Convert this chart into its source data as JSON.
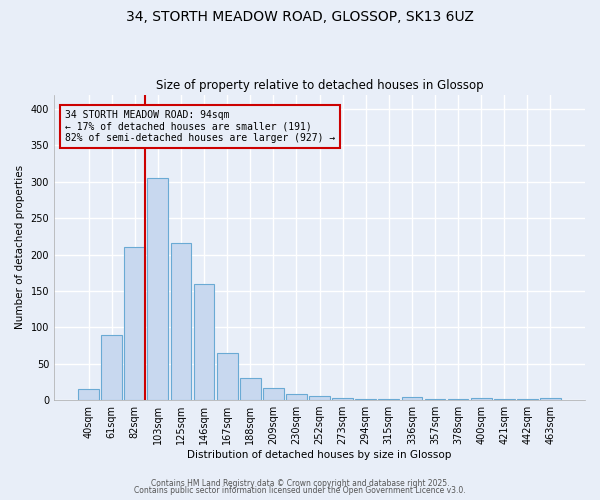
{
  "title1": "34, STORTH MEADOW ROAD, GLOSSOP, SK13 6UZ",
  "title2": "Size of property relative to detached houses in Glossop",
  "xlabel": "Distribution of detached houses by size in Glossop",
  "ylabel": "Number of detached properties",
  "bar_labels": [
    "40sqm",
    "61sqm",
    "82sqm",
    "103sqm",
    "125sqm",
    "146sqm",
    "167sqm",
    "188sqm",
    "209sqm",
    "230sqm",
    "252sqm",
    "273sqm",
    "294sqm",
    "315sqm",
    "336sqm",
    "357sqm",
    "378sqm",
    "400sqm",
    "421sqm",
    "442sqm",
    "463sqm"
  ],
  "bar_values": [
    15,
    90,
    211,
    305,
    216,
    160,
    65,
    30,
    17,
    9,
    6,
    3,
    2,
    2,
    4,
    2,
    1,
    3,
    1,
    1,
    3
  ],
  "bar_color": "#c8d8ef",
  "bar_edge_color": "#6aaad4",
  "bg_color": "#e8eef8",
  "grid_color": "#ffffff",
  "vline_color": "#cc0000",
  "annotation_text": "34 STORTH MEADOW ROAD: 94sqm\n← 17% of detached houses are smaller (191)\n82% of semi-detached houses are larger (927) →",
  "annotation_box_color": "#cc0000",
  "ylim": [
    0,
    420
  ],
  "yticks": [
    0,
    50,
    100,
    150,
    200,
    250,
    300,
    350,
    400
  ],
  "footer1": "Contains HM Land Registry data © Crown copyright and database right 2025.",
  "footer2": "Contains public sector information licensed under the Open Government Licence v3.0."
}
